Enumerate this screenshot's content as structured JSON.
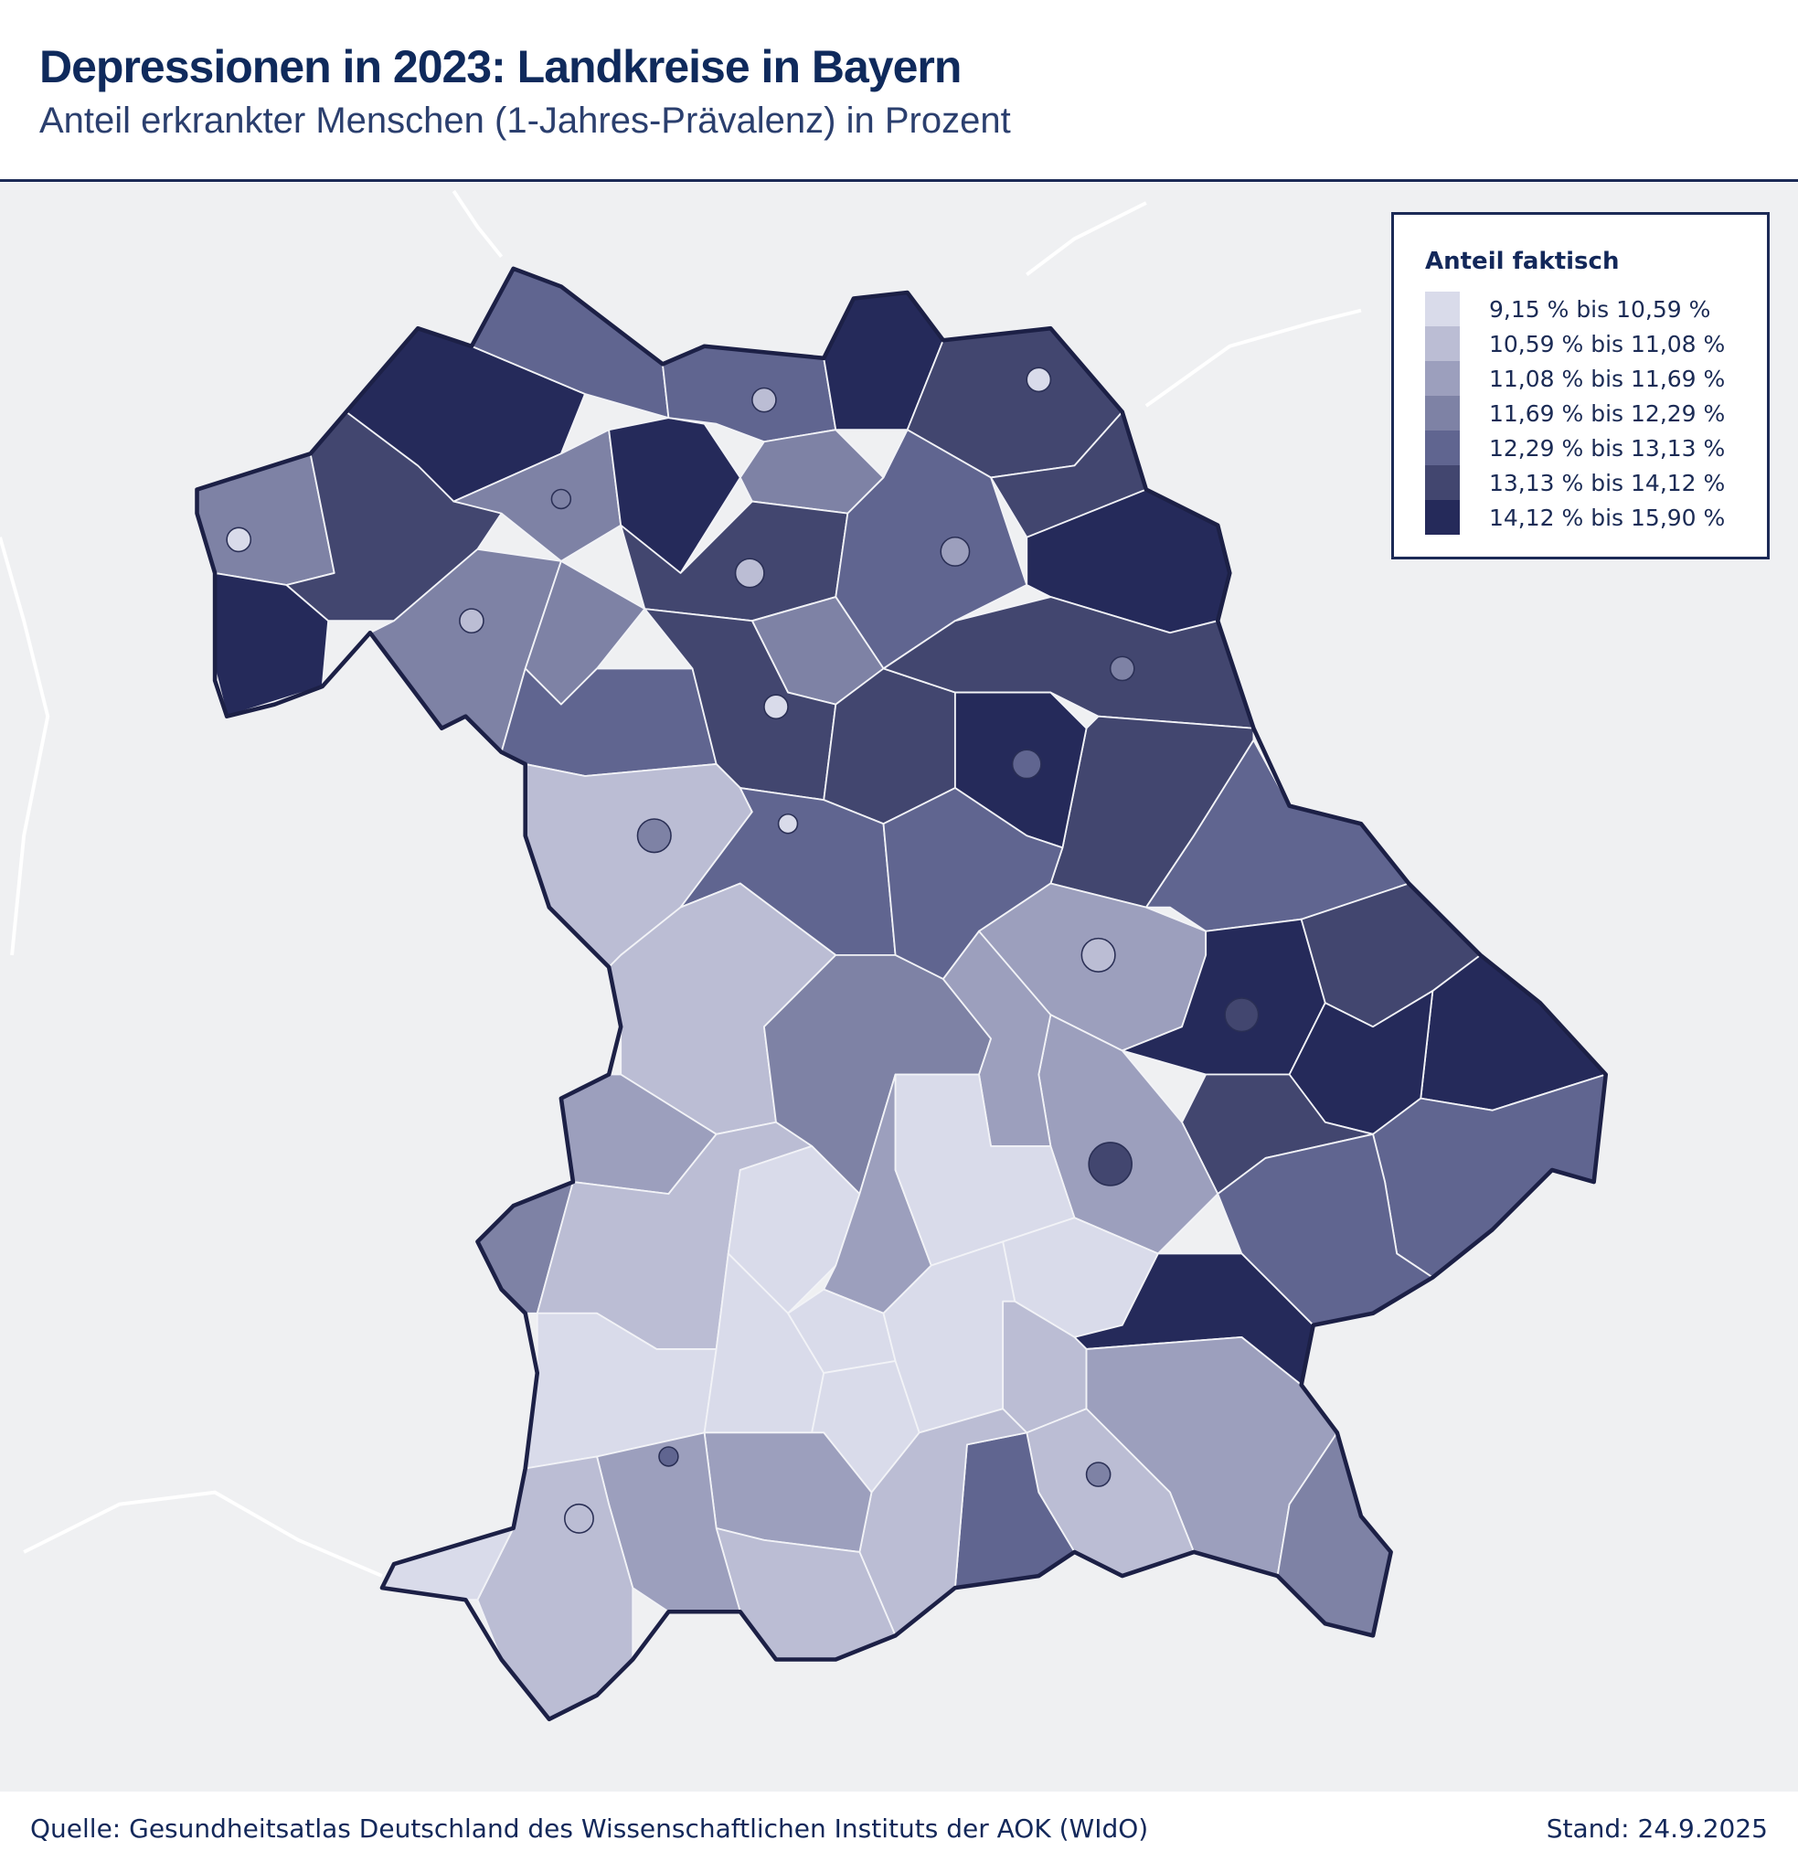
{
  "header": {
    "title": "Depressionen in 2023: Landkreise in Bayern",
    "subtitle": "Anteil erkrankter Menschen (1-Jahres-Prävalenz) in Prozent"
  },
  "legend": {
    "title": "Anteil faktisch",
    "classes": [
      {
        "label": "9,15 % bis 10,59 %",
        "color": "#d9dbea"
      },
      {
        "label": "10,59 % bis 11,08 %",
        "color": "#bbbdd4"
      },
      {
        "label": "11,08 % bis 11,69 %",
        "color": "#9c9fbd"
      },
      {
        "label": "11,69 % bis 12,29 %",
        "color": "#7e82a5"
      },
      {
        "label": "12,29 % bis 13,13 %",
        "color": "#606590"
      },
      {
        "label": "13,13 % bis 14,12 %",
        "color": "#42466f"
      },
      {
        "label": "14,12 % bis 15,90 %",
        "color": "#252a5a"
      }
    ]
  },
  "footer": {
    "source": "Quelle: Gesundheitsatlas Deutschland des Wissenschaftlichen Instituts der AOK (WIdO)",
    "date": "Stand: 24.9.2025"
  }
}
